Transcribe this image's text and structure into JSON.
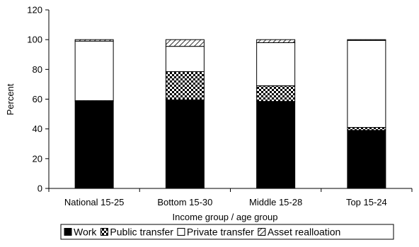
{
  "chart_data": {
    "type": "bar",
    "stacked": true,
    "title": "",
    "xlabel": "Income group / age group",
    "ylabel": "Percent",
    "ylim": [
      0,
      120
    ],
    "yticks": [
      0,
      20,
      40,
      60,
      80,
      100,
      120
    ],
    "categories": [
      "National 15-25",
      "Bottom 15-30",
      "Middle 15-28",
      "Top 15-24"
    ],
    "series": [
      {
        "name": "Work",
        "values": [
          58.5,
          59.5,
          58.5,
          39
        ],
        "fill": "solid-black"
      },
      {
        "name": "Public transfer",
        "values": [
          0.5,
          19,
          10.5,
          2
        ],
        "fill": "checker"
      },
      {
        "name": "Private transfer",
        "values": [
          40,
          17,
          29,
          58.5
        ],
        "fill": "white"
      },
      {
        "name": "Asset realloation",
        "values": [
          1,
          4.5,
          2,
          0.5
        ],
        "fill": "diagonal-hatch"
      }
    ],
    "grid": false,
    "legend_position": "bottom",
    "colors": {
      "bar_edge": "#000000",
      "axis": "#000000",
      "background": "#ffffff"
    }
  }
}
